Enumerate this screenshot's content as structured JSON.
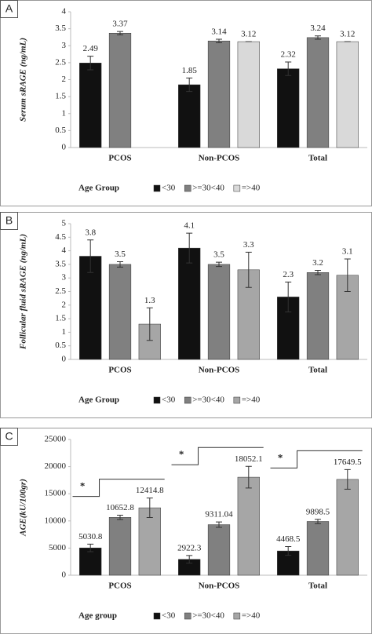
{
  "chart_data": [
    {
      "type": "bar",
      "panel": "A",
      "ylabel": "Serum sRAGE (ng/mL)",
      "categories": [
        "PCOS",
        "Non-PCOS",
        "Total"
      ],
      "series": [
        {
          "name": "<30",
          "color": "#111111",
          "values": [
            2.49,
            1.85,
            2.32
          ],
          "errors": [
            0.2,
            0.2,
            0.2
          ]
        },
        {
          "name": ">=30<40",
          "color": "#808080",
          "values": [
            3.37,
            3.14,
            3.24
          ],
          "errors": [
            0.05,
            0.05,
            0.05
          ]
        },
        {
          "name": "=>40",
          "color": "#d9d9d9",
          "values": [
            null,
            3.12,
            3.12
          ],
          "errors": [
            null,
            0,
            0
          ]
        }
      ],
      "ylim": [
        0,
        4
      ],
      "yticks": [
        0,
        0.5,
        1,
        1.5,
        2,
        2.5,
        3,
        3.5,
        4
      ],
      "legend_title": "Age Group"
    },
    {
      "type": "bar",
      "panel": "B",
      "ylabel": "Follicular fluid sRAGE (ng/mL)",
      "categories": [
        "PCOS",
        "Non-PCOS",
        "Total"
      ],
      "series": [
        {
          "name": "<30",
          "color": "#111111",
          "values": [
            3.8,
            4.1,
            2.3
          ],
          "errors": [
            0.6,
            0.55,
            0.55
          ]
        },
        {
          "name": ">=30<40",
          "color": "#808080",
          "values": [
            3.5,
            3.5,
            3.2
          ],
          "errors": [
            0.1,
            0.08,
            0.08
          ]
        },
        {
          "name": "=>40",
          "color": "#a6a6a6",
          "values": [
            1.3,
            3.3,
            3.1
          ],
          "errors": [
            0.6,
            0.65,
            0.6
          ]
        }
      ],
      "ylim": [
        0,
        5
      ],
      "yticks": [
        0,
        0.5,
        1,
        1.5,
        2,
        2.5,
        3,
        3.5,
        4,
        4.5,
        5
      ],
      "legend_title": "Age Group"
    },
    {
      "type": "bar",
      "panel": "C",
      "ylabel": "AGE(kU/100gr)",
      "categories": [
        "PCOS",
        "Non-PCOS",
        "Total"
      ],
      "series": [
        {
          "name": "<30",
          "color": "#111111",
          "values": [
            5030.8,
            2922.3,
            4468.5
          ],
          "errors": [
            700,
            700,
            800
          ]
        },
        {
          "name": ">=30<40",
          "color": "#808080",
          "values": [
            10652.8,
            9311.04,
            9898.5
          ],
          "errors": [
            400,
            500,
            400
          ]
        },
        {
          "name": "=>40",
          "color": "#a6a6a6",
          "values": [
            12414.8,
            18052.1,
            17649.5
          ],
          "errors": [
            1800,
            2000,
            1800
          ]
        }
      ],
      "annotations": [
        "*",
        "*",
        "*"
      ],
      "ylim": [
        0,
        25000
      ],
      "yticks": [
        0,
        5000,
        10000,
        15000,
        20000,
        25000
      ],
      "legend_title": "Age group"
    }
  ]
}
